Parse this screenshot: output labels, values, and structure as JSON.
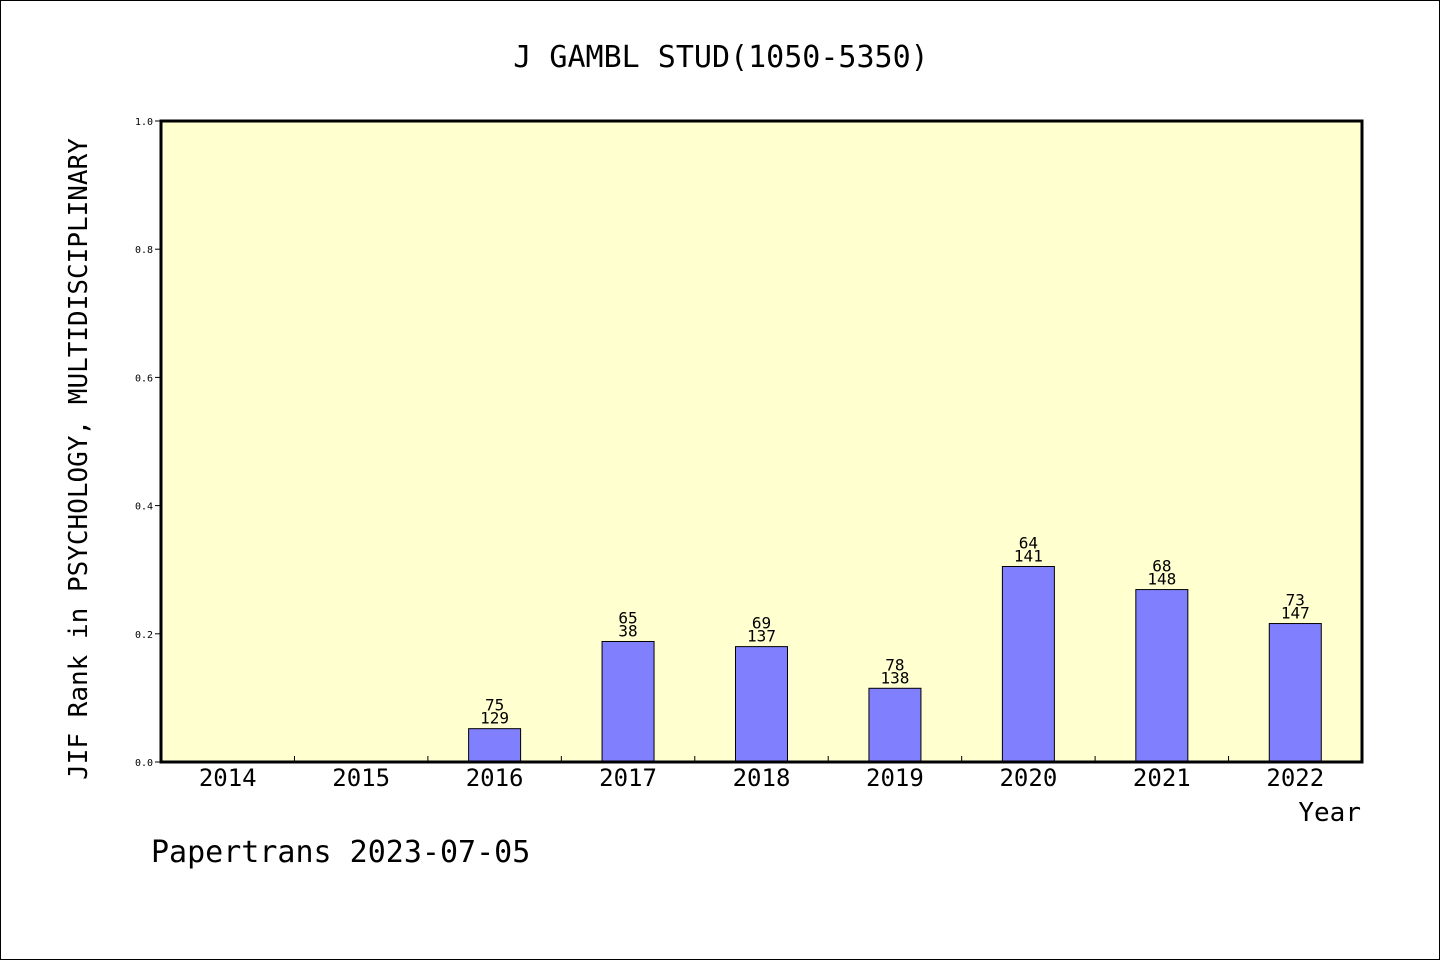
{
  "chart_data": {
    "type": "bar",
    "title": "J GAMBL STUD(1050-5350)",
    "xlabel": "Year",
    "ylabel": "JIF Rank in PSYCHOLOGY, MULTIDISCIPLINARY",
    "ylim": [
      0,
      1.0
    ],
    "yticks": [
      "0.0",
      "0.2",
      "0.4",
      "0.6",
      "0.8",
      "1.0"
    ],
    "categories": [
      "2014",
      "2015",
      "2016",
      "2017",
      "2018",
      "2019",
      "2020",
      "2021",
      "2022"
    ],
    "values": [
      null,
      null,
      0.052,
      0.188,
      0.18,
      0.115,
      0.305,
      0.269,
      0.216
    ],
    "rank_labels": [
      "",
      "",
      "75",
      "65",
      "69",
      "78",
      "64",
      "68",
      "73"
    ],
    "total_labels": [
      "",
      "",
      "129",
      "38",
      "137",
      "138",
      "141",
      "148",
      "147"
    ],
    "grid": false,
    "colors": {
      "plot_background": "#ffffd0",
      "bar_fill": "#8080ff",
      "bar_stroke": "#000000"
    }
  },
  "footer": {
    "credit": "Papertrans 2023-07-05"
  }
}
